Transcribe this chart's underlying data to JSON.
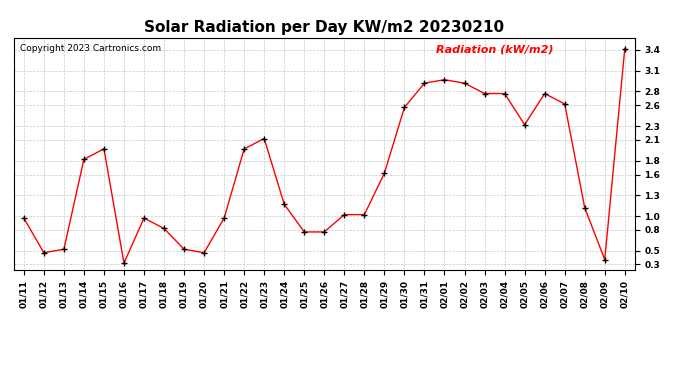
{
  "title": "Solar Radiation per Day KW/m2 20230210",
  "copyright": "Copyright 2023 Cartronics.com",
  "legend_label": "Radiation (kW/m2)",
  "dates": [
    "01/11",
    "01/12",
    "01/13",
    "01/14",
    "01/15",
    "01/16",
    "01/17",
    "01/18",
    "01/19",
    "01/20",
    "01/21",
    "01/22",
    "01/23",
    "01/24",
    "01/25",
    "01/26",
    "01/27",
    "01/28",
    "01/29",
    "01/30",
    "01/31",
    "02/01",
    "02/02",
    "02/03",
    "02/04",
    "02/05",
    "02/06",
    "02/07",
    "02/08",
    "02/09",
    "02/10"
  ],
  "values": [
    0.97,
    0.47,
    0.52,
    1.82,
    1.97,
    0.32,
    0.97,
    0.82,
    0.52,
    0.47,
    0.97,
    1.97,
    2.12,
    1.17,
    0.77,
    0.77,
    1.02,
    1.02,
    1.62,
    2.57,
    2.92,
    2.97,
    2.92,
    2.77,
    2.77,
    2.32,
    2.77,
    2.62,
    1.12,
    0.37,
    3.42
  ],
  "line_color": "red",
  "marker_color": "black",
  "marker_size": 4,
  "line_width": 1.0,
  "yticks": [
    0.3,
    0.5,
    0.8,
    1.0,
    1.3,
    1.6,
    1.8,
    2.1,
    2.3,
    2.6,
    2.8,
    3.1,
    3.4
  ],
  "ylim": [
    0.22,
    3.58
  ],
  "bg_color": "#ffffff",
  "grid_color": "#bbbbbb",
  "title_fontsize": 11,
  "copyright_fontsize": 6.5,
  "legend_fontsize": 8,
  "tick_fontsize": 6.5
}
